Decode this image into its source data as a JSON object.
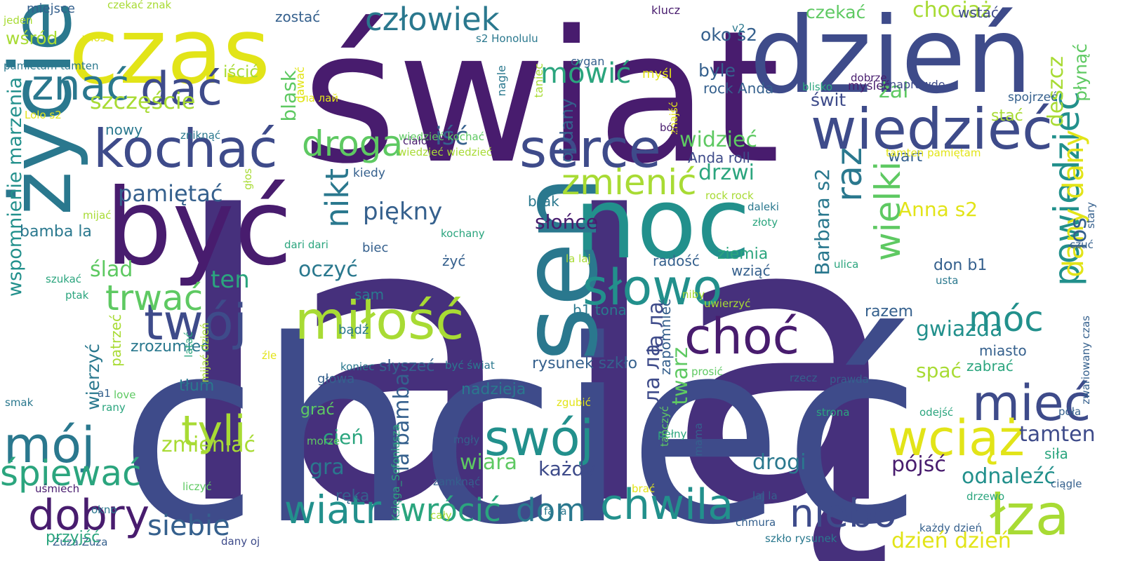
{
  "palette": {
    "indigo": "#46307c",
    "purple": "#481c6e",
    "slate": "#3e4b8a",
    "blue": "#35608d",
    "teal": "#2a788e",
    "cyan": "#22908c",
    "green": "#2ba57e",
    "lime": "#5ec962",
    "yellowgreen": "#a8db34",
    "yellow": "#e2e418"
  },
  "words": [
    {
      "text": "la",
      "color": "#46307c"
    },
    {
      "text": "lą",
      "color": "#46307c"
    },
    {
      "text": "chcieć",
      "color": "#3e4b8a"
    },
    {
      "text": "świat",
      "color": "#481c6e"
    },
    {
      "text": "dzień",
      "color": "#3e4b8a"
    },
    {
      "text": "życie",
      "color": "#2a788e"
    },
    {
      "text": "czas",
      "color": "#e2e418"
    },
    {
      "text": "noc",
      "color": "#22908c"
    },
    {
      "text": "sen",
      "color": "#2a788e"
    },
    {
      "text": "być",
      "color": "#481c6e"
    },
    {
      "text": "wiedzieć",
      "color": "#3e4b8a"
    },
    {
      "text": "serce",
      "color": "#3e4b8a"
    },
    {
      "text": "kochać",
      "color": "#3e4b8a"
    },
    {
      "text": "dać",
      "color": "#3e4b8a"
    },
    {
      "text": "znać",
      "color": "#2a788e"
    },
    {
      "text": "człowiek",
      "color": "#2a788e"
    },
    {
      "text": "mówić",
      "color": "#2ba57e"
    },
    {
      "text": "droga",
      "color": "#5ec962"
    },
    {
      "text": "miłość",
      "color": "#a8db34"
    },
    {
      "text": "słowo",
      "color": "#22908c"
    },
    {
      "text": "twój",
      "color": "#3e4b8a"
    },
    {
      "text": "mój",
      "color": "#2a788e"
    },
    {
      "text": "swój",
      "color": "#22908c"
    },
    {
      "text": "choć",
      "color": "#481c6e"
    },
    {
      "text": "mieć",
      "color": "#3e4b8a"
    },
    {
      "text": "móc",
      "color": "#22908c"
    },
    {
      "text": "wciąż",
      "color": "#e2e418"
    },
    {
      "text": "łza",
      "color": "#a8db34"
    },
    {
      "text": "chwila",
      "color": "#22908c"
    },
    {
      "text": "niebo",
      "color": "#3e4b8a"
    },
    {
      "text": "wiatr",
      "color": "#22908c"
    },
    {
      "text": "dom",
      "color": "#2a788e"
    },
    {
      "text": "wrócić",
      "color": "#2ba57e"
    },
    {
      "text": "dobry",
      "color": "#481c6e"
    },
    {
      "text": "siebie",
      "color": "#35608d"
    },
    {
      "text": "śpiewać",
      "color": "#2ba57e"
    },
    {
      "text": "tyli",
      "color": "#a8db34"
    },
    {
      "text": "trwać",
      "color": "#5ec962"
    },
    {
      "text": "zmienić",
      "color": "#a8db34"
    },
    {
      "text": "raz",
      "color": "#2a788e"
    },
    {
      "text": "wielki",
      "color": "#5ec962"
    },
    {
      "text": "powiedzieć",
      "color": "#22908c"
    },
    {
      "text": "dany dany",
      "color": "#e2e418"
    },
    {
      "text": "nikt",
      "color": "#2a788e"
    },
    {
      "text": "szczęście",
      "color": "#a8db34"
    },
    {
      "text": "pamiętać",
      "color": "#35608d"
    },
    {
      "text": "piękny",
      "color": "#35608d"
    },
    {
      "text": "ten",
      "color": "#2ba57e"
    },
    {
      "text": "ślad",
      "color": "#5ec962"
    },
    {
      "text": "oczyć",
      "color": "#2a788e"
    },
    {
      "text": "iść",
      "color": "#35608d"
    },
    {
      "text": "widzieć",
      "color": "#5ec962"
    },
    {
      "text": "drzwi",
      "color": "#2ba57e"
    },
    {
      "text": "Anda roll",
      "color": "#3e4b8a"
    },
    {
      "text": "słońce",
      "color": "#481c6e"
    },
    {
      "text": "Barbara s2",
      "color": "#2a788e"
    },
    {
      "text": "Anna s2",
      "color": "#e2e418"
    },
    {
      "text": "los",
      "color": "#35608d"
    },
    {
      "text": "czekać",
      "color": "#5ec962"
    },
    {
      "text": "chociaż",
      "color": "#a8db34"
    },
    {
      "text": "płynąć",
      "color": "#5ec962"
    },
    {
      "text": "deszcz",
      "color": "#a8db34"
    },
    {
      "text": "żal",
      "color": "#5ec962"
    },
    {
      "text": "świt",
      "color": "#3e4b8a"
    },
    {
      "text": "oko s2",
      "color": "#35608d"
    },
    {
      "text": "blask",
      "color": "#5ec962"
    },
    {
      "text": "byle",
      "color": "#35608d"
    },
    {
      "text": "rock Anda",
      "color": "#35608d"
    },
    {
      "text": "zostać",
      "color": "#35608d"
    },
    {
      "text": "wśród",
      "color": "#a8db34"
    },
    {
      "text": "iścić",
      "color": "#a8db34"
    },
    {
      "text": "wspomnienie marzenia",
      "color": "#22908c"
    },
    {
      "text": "wstać",
      "color": "#3e4b8a"
    },
    {
      "text": "nowy",
      "color": "#2a788e"
    },
    {
      "text": "bamba la",
      "color": "#2a788e"
    },
    {
      "text": "la bamba",
      "color": "#35608d"
    },
    {
      "text": "gra",
      "color": "#2a788e"
    },
    {
      "text": "cień",
      "color": "#2ba57e"
    },
    {
      "text": "wiara",
      "color": "#5ec962"
    },
    {
      "text": "każdy",
      "color": "#3e4b8a"
    },
    {
      "text": "drogi",
      "color": "#2a788e"
    },
    {
      "text": "pójść",
      "color": "#481c6e"
    },
    {
      "text": "odnaleźć",
      "color": "#22908c"
    },
    {
      "text": "tamten",
      "color": "#3e4b8a"
    },
    {
      "text": "siła",
      "color": "#2ba57e"
    },
    {
      "text": "gwiazda",
      "color": "#22908c"
    },
    {
      "text": "spać",
      "color": "#a8db34"
    },
    {
      "text": "zabrać",
      "color": "#2ba57e"
    },
    {
      "text": "miasto",
      "color": "#35608d"
    },
    {
      "text": "razem",
      "color": "#35608d"
    },
    {
      "text": "don b1",
      "color": "#35608d"
    },
    {
      "text": "ziemia",
      "color": "#2ba57e"
    },
    {
      "text": "wziąć",
      "color": "#35608d"
    },
    {
      "text": "radość",
      "color": "#35608d"
    },
    {
      "text": "twarz",
      "color": "#5ec962"
    },
    {
      "text": "zapomnieć",
      "color": "#35608d"
    },
    {
      "text": "la ла",
      "color": "#3e4b8a"
    },
    {
      "text": "ла ла",
      "color": "#3e4b8a"
    },
    {
      "text": "zmieniać",
      "color": "#a8db34"
    },
    {
      "text": "zrozumieć",
      "color": "#2a788e"
    },
    {
      "text": "wierzyć",
      "color": "#2a788e"
    },
    {
      "text": "patrzeć",
      "color": "#a8db34"
    },
    {
      "text": "słyszeć",
      "color": "#35608d"
    },
    {
      "text": "rysunek szkło",
      "color": "#35608d"
    },
    {
      "text": "nadzieja",
      "color": "#2a788e"
    },
    {
      "text": "ręka",
      "color": "#35608d"
    },
    {
      "text": "tłum",
      "color": "#2a788e"
    },
    {
      "text": "grać",
      "color": "#5ec962"
    },
    {
      "text": "głowa",
      "color": "#35608d"
    },
    {
      "text": "koniec",
      "color": "#2a788e"
    },
    {
      "text": "być świat",
      "color": "#2a788e"
    },
    {
      "text": "b1 tona",
      "color": "#2a788e"
    },
    {
      "text": "sam",
      "color": "#2a788e"
    },
    {
      "text": "bądź",
      "color": "#2a788e"
    },
    {
      "text": "żyć",
      "color": "#35608d"
    },
    {
      "text": "biec",
      "color": "#35608d"
    },
    {
      "text": "kochany",
      "color": "#2ba57e"
    },
    {
      "text": "brak",
      "color": "#2a788e"
    },
    {
      "text": "kiedy",
      "color": "#35608d"
    },
    {
      "text": "wiedzieć wiedzieć",
      "color": "#a8db34"
    },
    {
      "text": "wiedzieć kochać",
      "color": "#5ec962"
    },
    {
      "text": "ciało",
      "color": "#481c6e"
    },
    {
      "text": "cygan",
      "color": "#35608d"
    },
    {
      "text": "oj dany",
      "color": "#35608d"
    },
    {
      "text": "nagle",
      "color": "#2a788e"
    },
    {
      "text": "taniec",
      "color": "#a8db34"
    },
    {
      "text": "dawać",
      "color": "#e2e418"
    },
    {
      "text": "s2 Honolulu",
      "color": "#2a788e"
    },
    {
      "text": "klucz",
      "color": "#481c6e"
    },
    {
      "text": "v2",
      "color": "#2a788e"
    },
    {
      "text": "dobrze",
      "color": "#481c6e"
    },
    {
      "text": "blisko",
      "color": "#2ba57e"
    },
    {
      "text": "myśleć",
      "color": "#481c6e"
    },
    {
      "text": "naprawdę",
      "color": "#3e4b8a"
    },
    {
      "text": "spojrzeć",
      "color": "#35608d"
    },
    {
      "text": "stać",
      "color": "#a8db34"
    },
    {
      "text": "wart",
      "color": "#35608d"
    },
    {
      "text": "tamten pamiętam",
      "color": "#e2e418"
    },
    {
      "text": "stary",
      "color": "#35608d"
    },
    {
      "text": "czuć",
      "color": "#35608d"
    },
    {
      "text": "zwariowany czas",
      "color": "#35608d"
    },
    {
      "text": "usta",
      "color": "#2a788e"
    },
    {
      "text": "ulica",
      "color": "#2ba57e"
    },
    {
      "text": "złoty",
      "color": "#2ba57e"
    },
    {
      "text": "daleki",
      "color": "#2a788e"
    },
    {
      "text": "rock rock",
      "color": "#a8db34"
    },
    {
      "text": "niby",
      "color": "#a8db34"
    },
    {
      "text": "uwierzyć",
      "color": "#a8db34"
    },
    {
      "text": "prawda",
      "color": "#35608d"
    },
    {
      "text": "rzecz",
      "color": "#35608d"
    },
    {
      "text": "strona",
      "color": "#2ba57e"
    },
    {
      "text": "odejść",
      "color": "#2ba57e"
    },
    {
      "text": "póła",
      "color": "#35608d"
    },
    {
      "text": "ciągle",
      "color": "#35608d"
    },
    {
      "text": "każdy dzień",
      "color": "#35608d"
    },
    {
      "text": "drzewo",
      "color": "#2ba57e"
    },
    {
      "text": "chmura",
      "color": "#35608d"
    },
    {
      "text": "szkło rysunek",
      "color": "#2a788e"
    },
    {
      "text": "dzień dzień",
      "color": "#e2e418"
    },
    {
      "text": "laj la",
      "color": "#35608d"
    },
    {
      "text": "la laj",
      "color": "#a8db34"
    },
    {
      "text": "fa la",
      "color": "#2a788e"
    },
    {
      "text": "cały",
      "color": "#a8db34"
    },
    {
      "text": "zamknąć",
      "color": "#35608d"
    },
    {
      "text": "mgły",
      "color": "#35608d"
    },
    {
      "text": "Księga_Sofoniasza",
      "color": "#2ba57e"
    },
    {
      "text": "brać",
      "color": "#e2e418"
    },
    {
      "text": "pełny",
      "color": "#2ba57e"
    },
    {
      "text": "tańczyć",
      "color": "#5ec962"
    },
    {
      "text": "mama",
      "color": "#35608d"
    },
    {
      "text": "prosić",
      "color": "#5ec962"
    },
    {
      "text": "zgubić",
      "color": "#e2e418"
    },
    {
      "text": "morze",
      "color": "#5ec962"
    },
    {
      "text": "Zuza Zuza",
      "color": "#35608d"
    },
    {
      "text": "dany oj",
      "color": "#3e4b8a"
    },
    {
      "text": "przyjść",
      "color": "#2ba57e"
    },
    {
      "text": "okno",
      "color": "#2a788e"
    },
    {
      "text": "uśmiech",
      "color": "#481c6e"
    },
    {
      "text": "liczyć",
      "color": "#5ec962"
    },
    {
      "text": "rany",
      "color": "#2ba57e"
    },
    {
      "text": "love",
      "color": "#5ec962"
    },
    {
      "text": "a1",
      "color": "#35608d"
    },
    {
      "text": "smak",
      "color": "#2a788e"
    },
    {
      "text": "źle",
      "color": "#e2e418"
    },
    {
      "text": "mijać dzień",
      "color": "#a8db34"
    },
    {
      "text": "latać",
      "color": "#2ba57e"
    },
    {
      "text": "ptak",
      "color": "#2ba57e"
    },
    {
      "text": "szukać",
      "color": "#2ba57e"
    },
    {
      "text": "dari dari",
      "color": "#2ba57e"
    },
    {
      "text": "mijać",
      "color": "#a8db34"
    },
    {
      "text": "głos",
      "color": "#a8db34"
    },
    {
      "text": "zniknąć",
      "color": "#2a788e"
    },
    {
      "text": "Lolo s2",
      "color": "#e2e418"
    },
    {
      "text": "pamietam tamten",
      "color": "#2a788e"
    },
    {
      "text": "jeden",
      "color": "#a8db34"
    },
    {
      "text": "włos",
      "color": "#e2e418"
    },
    {
      "text": "miejsce",
      "color": "#35608d"
    },
    {
      "text": "czekać znak",
      "color": "#a8db34"
    },
    {
      "text": "myśl",
      "color": "#e2e418"
    },
    {
      "text": "ла лай",
      "color": "#e2e418"
    },
    {
      "text": "znajść",
      "color": "#e2e418"
    },
    {
      "text": "bóg",
      "color": "#481c6e"
    }
  ]
}
